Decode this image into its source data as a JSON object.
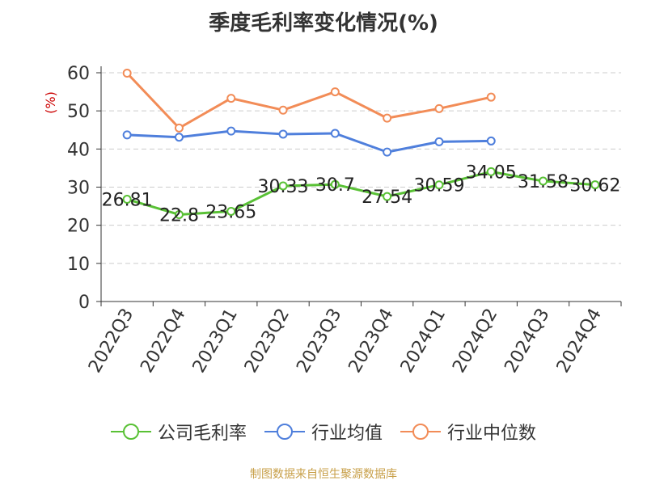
{
  "colors": {
    "gross_margin": "#59c135",
    "industry_avg": "#4f7fdc",
    "industry_median": "#f28c57",
    "axis": "#333333",
    "grid": "#cccccc",
    "ylabel": "#cc0000",
    "source": "#c8a04a"
  },
  "chart_data": {
    "type": "line",
    "title": "季度毛利率变化情况(%)",
    "ylabel": "(%)",
    "xlabel": "",
    "ylim": [
      0,
      60
    ],
    "yticks": [
      0,
      10,
      20,
      30,
      40,
      50,
      60
    ],
    "grid": true,
    "legend_position": "bottom",
    "categories": [
      "2022Q3",
      "2022Q4",
      "2023Q1",
      "2023Q2",
      "2023Q3",
      "2023Q4",
      "2024Q1",
      "2024Q2",
      "2024Q3",
      "2024Q4"
    ],
    "series": [
      {
        "name": "公司毛利率",
        "color": "#59c135",
        "values": [
          26.81,
          22.8,
          23.65,
          30.33,
          30.7,
          27.54,
          30.59,
          34.05,
          31.58,
          30.62
        ],
        "labels": [
          "26.81",
          "22.8",
          "23.65",
          "30.33",
          "30.7",
          "27.54",
          "30.59",
          "34.05",
          "31.58",
          "30.62"
        ]
      },
      {
        "name": "行业均值",
        "color": "#4f7fdc",
        "values": [
          43.7,
          43.1,
          44.7,
          43.9,
          44.1,
          39.2,
          41.9,
          42.1,
          null,
          null
        ]
      },
      {
        "name": "行业中位数",
        "color": "#f28c57",
        "values": [
          59.9,
          45.5,
          53.3,
          50.2,
          55.0,
          48.1,
          50.6,
          53.6,
          null,
          null
        ]
      }
    ]
  },
  "source_text": "制图数据来自恒生聚源数据库"
}
